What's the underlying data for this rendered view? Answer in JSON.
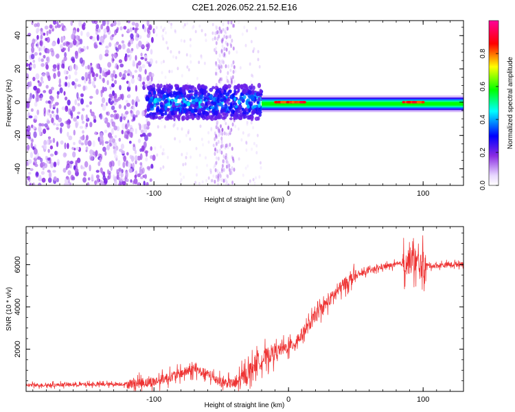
{
  "title": "C2E1.2026.052.21.52.E16",
  "chart_data": [
    {
      "type": "heatmap",
      "name": "spectrogram",
      "xlabel": "Height of straight line (km)",
      "ylabel": "Frequency (Hz)",
      "xlim": [
        -195,
        130
      ],
      "ylim": [
        -50,
        49
      ],
      "xticks": [
        -100,
        0,
        100
      ],
      "xtick_labels": [
        "-100",
        "0",
        "100"
      ],
      "yticks": [
        -40,
        -20,
        0,
        20,
        40
      ],
      "ytick_labels": [
        "-40",
        "-20",
        "0",
        "20",
        "40"
      ],
      "colorbar": {
        "label": "Normalized spectral amplitude",
        "range": [
          0,
          1
        ],
        "ticks": [
          0.0,
          0.2,
          0.4,
          0.6,
          0.8
        ],
        "tick_labels": [
          "0.0",
          "0.2",
          "0.4",
          "0.6",
          "0.8"
        ]
      },
      "features": [
        {
          "region": "diffuse noise",
          "x_range": [
            -195,
            -100
          ],
          "f_range": [
            -50,
            49
          ],
          "amplitude": 0.15
        },
        {
          "region": "noisy band",
          "x_range": [
            -105,
            -20
          ],
          "f_center": 0,
          "f_halfwidth": 10,
          "amplitude": 0.4
        },
        {
          "region": "noise strip",
          "x_range": [
            -55,
            -40
          ],
          "f_range": [
            -50,
            49
          ],
          "amplitude": 0.12
        },
        {
          "region": "clear carrier",
          "x_range": [
            -20,
            130
          ],
          "f_center": -1,
          "f_halfwidth": 4,
          "amplitude": 0.6
        },
        {
          "region": "peak",
          "x_range": [
            -10,
            12
          ],
          "f_center": 0,
          "amplitude": 0.95
        },
        {
          "region": "peak",
          "x_range": [
            85,
            100
          ],
          "f_center": 0,
          "amplitude": 0.9
        }
      ],
      "grid": false
    },
    {
      "type": "line",
      "name": "snr",
      "xlabel": "Height of straight line (km)",
      "ylabel": "SNR (10 * v/v)",
      "xlim": [
        -195,
        130
      ],
      "ylim": [
        0,
        7800
      ],
      "xticks": [
        -100,
        0,
        100
      ],
      "xtick_labels": [
        "-100",
        "0",
        "100"
      ],
      "yticks": [
        2000,
        4000,
        6000
      ],
      "ytick_labels": [
        "2000",
        "4000",
        "6000"
      ],
      "color": "#ee3333",
      "series": [
        {
          "name": "SNR",
          "x": [
            -195,
            -180,
            -160,
            -140,
            -120,
            -100,
            -90,
            -80,
            -70,
            -60,
            -50,
            -40,
            -35,
            -30,
            -25,
            -20,
            -15,
            -10,
            -5,
            0,
            5,
            10,
            15,
            20,
            25,
            30,
            35,
            40,
            45,
            50,
            55,
            60,
            65,
            70,
            75,
            80,
            85,
            88,
            92,
            95,
            98,
            100,
            103,
            110,
            120,
            130
          ],
          "y": [
            300,
            300,
            320,
            330,
            350,
            450,
            650,
            850,
            1050,
            800,
            450,
            350,
            550,
            900,
            1300,
            1500,
            1700,
            1900,
            2000,
            2100,
            2300,
            2700,
            3100,
            3600,
            3950,
            4300,
            4650,
            5000,
            5250,
            5450,
            5600,
            5700,
            5800,
            5900,
            5950,
            6000,
            6050,
            6150,
            6200,
            6100,
            5900,
            6000,
            5950,
            5950,
            6000,
            6050
          ]
        }
      ],
      "grid": false
    }
  ]
}
